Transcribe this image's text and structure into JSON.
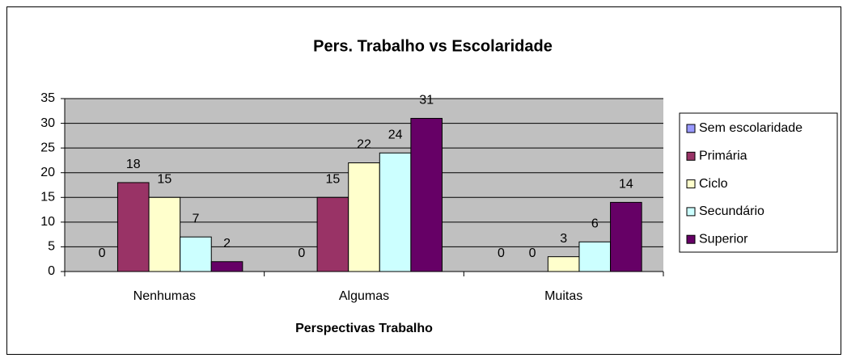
{
  "chart_data": {
    "type": "bar",
    "title": "Pers. Trabalho vs Escolaridade",
    "x_label": "Perspectivas Trabalho",
    "categories": [
      "Nenhumas",
      "Algumas",
      "Muitas"
    ],
    "series": [
      {
        "name": "Sem escolaridade",
        "color": "#9999ff",
        "values": [
          0,
          0,
          0
        ]
      },
      {
        "name": "Primária",
        "color": "#993366",
        "values": [
          18,
          15,
          0
        ]
      },
      {
        "name": "Ciclo",
        "color": "#ffffcc",
        "values": [
          15,
          22,
          3
        ]
      },
      {
        "name": "Secundário",
        "color": "#ccffff",
        "values": [
          7,
          24,
          6
        ]
      },
      {
        "name": "Superior",
        "color": "#660066",
        "values": [
          2,
          31,
          14
        ]
      }
    ],
    "ylim": [
      0,
      35
    ],
    "yticks": [
      0,
      5,
      10,
      15,
      20,
      25,
      30,
      35
    ],
    "grid": true,
    "legend": "right"
  }
}
